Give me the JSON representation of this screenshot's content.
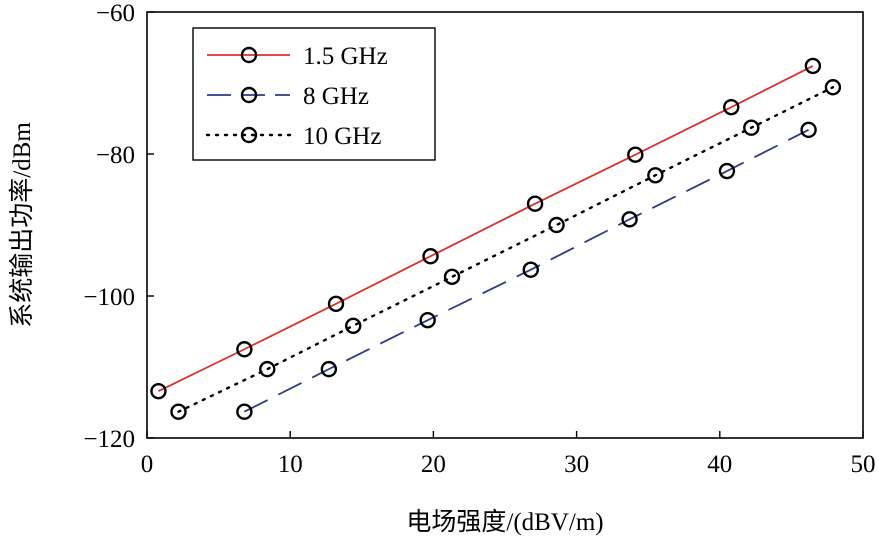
{
  "chart_data": {
    "type": "line",
    "title": "",
    "xlabel": "电场强度/(dBV/m)",
    "ylabel": "系统输出功率/dBm",
    "xlim": [
      0,
      50
    ],
    "ylim": [
      -120,
      -60
    ],
    "xticks": [
      0,
      10,
      20,
      30,
      40,
      50
    ],
    "yticks": [
      -120,
      -100,
      -80,
      -60
    ],
    "xtick_labels": [
      "0",
      "10",
      "20",
      "30",
      "40",
      "50"
    ],
    "ytick_labels": [
      "−120",
      "−100",
      "−80",
      "−60"
    ],
    "grid": false,
    "legend_position": "top-left",
    "series": [
      {
        "name": "1.5 GHz",
        "color": "#e0302a",
        "style": "solid",
        "marker": "circle",
        "x": [
          0.8,
          6.8,
          13.2,
          19.8,
          27.1,
          34.1,
          40.8,
          46.5
        ],
        "y": [
          -113.4,
          -107.5,
          -101.1,
          -94.4,
          -87.0,
          -80.1,
          -73.4,
          -67.6
        ]
      },
      {
        "name": "8 GHz",
        "color": "#2e3a87",
        "style": "dashed",
        "marker": "circle",
        "x": [
          6.8,
          12.7,
          19.6,
          26.8,
          33.7,
          40.5,
          46.2
        ],
        "y": [
          -116.3,
          -110.3,
          -103.4,
          -96.3,
          -89.2,
          -82.4,
          -76.6
        ]
      },
      {
        "name": "10 GHz",
        "color": "#000000",
        "style": "dotted",
        "marker": "circle",
        "x": [
          2.2,
          8.4,
          14.4,
          21.3,
          28.6,
          35.5,
          42.2,
          47.9
        ],
        "y": [
          -116.3,
          -110.3,
          -104.2,
          -97.3,
          -90.0,
          -83.0,
          -76.3,
          -70.6
        ]
      }
    ]
  }
}
